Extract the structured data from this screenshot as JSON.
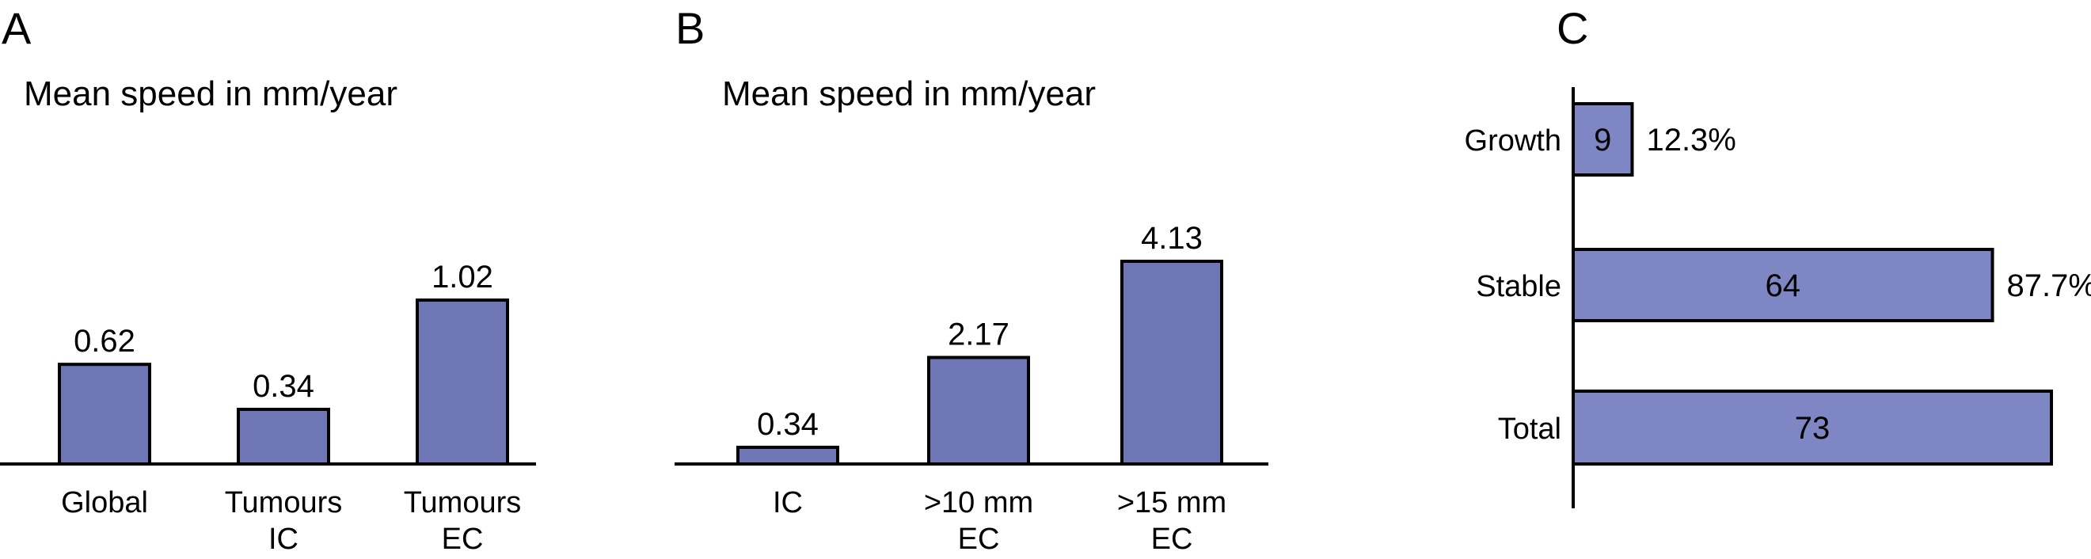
{
  "chart_data": [
    {
      "type": "bar",
      "panel": "A",
      "title": "Mean speed in mm/year",
      "categories": [
        [
          "Global"
        ],
        [
          "Tumours",
          "IC"
        ],
        [
          "Tumours",
          "EC"
        ]
      ],
      "values": [
        0.62,
        0.34,
        1.02
      ],
      "value_labels": [
        "0.62",
        "0.34",
        "1.02"
      ],
      "bar_color": "#6e76b5"
    },
    {
      "type": "bar",
      "panel": "B",
      "title": "Mean speed in mm/year",
      "categories": [
        [
          "IC"
        ],
        [
          ">10 mm",
          "EC"
        ],
        [
          ">15 mm",
          "EC"
        ]
      ],
      "values": [
        0.34,
        2.17,
        4.13
      ],
      "value_labels": [
        "0.34",
        "2.17",
        "4.13"
      ],
      "bar_color": "#6e76b5"
    },
    {
      "type": "bar",
      "orientation": "horizontal",
      "panel": "C",
      "categories": [
        "Growth",
        "Stable",
        "Total"
      ],
      "values": [
        9,
        64,
        73
      ],
      "value_labels": [
        "9",
        "64",
        "73"
      ],
      "percent_labels": [
        "12.3%",
        "87.7%",
        ""
      ],
      "bar_color": "#7e87c4"
    }
  ]
}
